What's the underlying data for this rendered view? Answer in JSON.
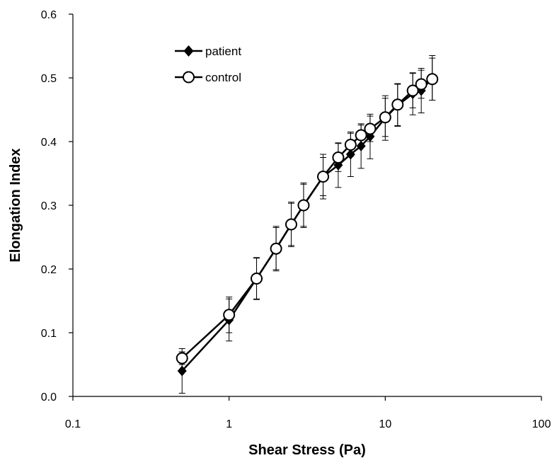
{
  "chart_data": {
    "type": "line",
    "xlabel": "Shear Stress (Pa)",
    "ylabel": "Elongation Index",
    "x_scale": "log",
    "xlim": [
      0.1,
      100
    ],
    "ylim": [
      0,
      0.6
    ],
    "x_ticks": [
      0.1,
      1,
      10,
      100
    ],
    "x_tick_labels": [
      "0.1",
      "1",
      "10",
      "100"
    ],
    "y_ticks": [
      0,
      0.1,
      0.2,
      0.3,
      0.4,
      0.5,
      0.6
    ],
    "y_tick_labels": [
      "0.0",
      "0.1",
      "0.2",
      "0.3",
      "0.4",
      "0.5",
      "0.6"
    ],
    "grid": false,
    "legend_position": "top-left",
    "series": [
      {
        "name": "patient",
        "marker": "diamond-filled",
        "color": "#000000",
        "x": [
          0.5,
          1,
          1.5,
          2,
          2.5,
          3,
          4,
          5,
          6,
          7,
          8,
          10,
          12,
          15,
          17,
          20
        ],
        "y": [
          0.04,
          0.12,
          0.185,
          0.232,
          0.27,
          0.3,
          0.345,
          0.363,
          0.38,
          0.393,
          0.408,
          0.437,
          0.457,
          0.475,
          0.48,
          0.5
        ],
        "error": [
          0.035,
          0.033,
          0.033,
          0.033,
          0.033,
          0.033,
          0.035,
          0.035,
          0.035,
          0.035,
          0.035,
          0.035,
          0.033,
          0.033,
          0.035,
          0.035
        ]
      },
      {
        "name": "control",
        "marker": "circle-open",
        "color": "#000000",
        "x": [
          0.5,
          1,
          1.5,
          2,
          2.5,
          3,
          4,
          5,
          6,
          7,
          8,
          10,
          12,
          15,
          17,
          20
        ],
        "y": [
          0.06,
          0.128,
          0.185,
          0.232,
          0.27,
          0.3,
          0.345,
          0.375,
          0.395,
          0.41,
          0.42,
          0.438,
          0.458,
          0.48,
          0.49,
          0.498
        ],
        "error": [
          0.01,
          0.028,
          0.032,
          0.035,
          0.035,
          0.035,
          0.03,
          0.022,
          0.018,
          0.016,
          0.02,
          0.03,
          0.033,
          0.027,
          0.022,
          0.033
        ]
      }
    ]
  }
}
